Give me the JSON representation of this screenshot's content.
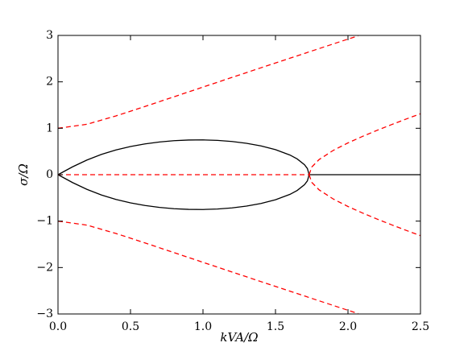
{
  "chart_data": {
    "type": "line",
    "xlabel": "kVA/Ω",
    "ylabel": "σ/Ω",
    "xlim": [
      0,
      2.5
    ],
    "ylim": [
      -3,
      3
    ],
    "xticks": [
      {
        "value": 0,
        "label": "0.0"
      },
      {
        "value": 0.5,
        "label": "0.5"
      },
      {
        "value": 1,
        "label": "1.0"
      },
      {
        "value": 1.5,
        "label": "1.5"
      },
      {
        "value": 2,
        "label": "2.0"
      },
      {
        "value": 2.5,
        "label": "2.5"
      }
    ],
    "yticks": [
      {
        "value": -3,
        "label": "−3"
      },
      {
        "value": -2,
        "label": "−2"
      },
      {
        "value": -1,
        "label": "−1"
      },
      0,
      1,
      2,
      3
    ],
    "grid": false,
    "series": [
      {
        "color": "#000000",
        "linestyle": "solid",
        "x": [
          0,
          0.1,
          0.2,
          0.3,
          0.4,
          0.5,
          0.6,
          0.7,
          0.8,
          0.9,
          1.0,
          1.1,
          1.2,
          1.3,
          1.4,
          1.5,
          1.6,
          1.65,
          1.7,
          1.72,
          1.732
        ],
        "values": [
          0,
          0.1689,
          0.3167,
          0.4371,
          0.5324,
          0.6067,
          0.6633,
          0.7047,
          0.7323,
          0.7471,
          0.7494,
          0.739,
          0.7152,
          0.6765,
          0.6199,
          0.5398,
          0.4229,
          0.3394,
          0.2158,
          0.1332,
          0
        ]
      },
      {
        "color": "#000000",
        "linestyle": "solid",
        "x": [
          0,
          0.1,
          0.2,
          0.3,
          0.4,
          0.5,
          0.6,
          0.7,
          0.8,
          0.9,
          1.0,
          1.1,
          1.2,
          1.3,
          1.4,
          1.5,
          1.6,
          1.65,
          1.7,
          1.72,
          1.732
        ],
        "values": [
          0,
          -0.1689,
          -0.3167,
          -0.4371,
          -0.5324,
          -0.6067,
          -0.6633,
          -0.7047,
          -0.7323,
          -0.7471,
          -0.7494,
          -0.739,
          -0.7152,
          -0.6765,
          -0.6199,
          -0.5398,
          -0.4229,
          -0.3394,
          -0.2158,
          -0.1332,
          0
        ]
      },
      {
        "color": "#000000",
        "linestyle": "solid",
        "x": [
          1.732,
          2.5
        ],
        "values": [
          0,
          0
        ]
      },
      {
        "color": "#ff0000",
        "linestyle": "dashed",
        "x": [
          0,
          1.732
        ],
        "values": [
          0,
          0
        ]
      },
      {
        "color": "#ff0000",
        "linestyle": "dashed",
        "x": [
          0,
          0.2,
          0.4,
          0.6,
          0.8,
          1.0,
          1.2,
          1.4,
          1.6,
          1.8,
          2.0,
          2.07
        ],
        "values": [
          1,
          1.0864,
          1.2663,
          1.4697,
          1.6782,
          1.8872,
          2.0956,
          2.3031,
          2.5098,
          2.7156,
          2.9208,
          2.992
        ]
      },
      {
        "color": "#ff0000",
        "linestyle": "dashed",
        "x": [
          0,
          0.2,
          0.4,
          0.6,
          0.8,
          1.0,
          1.2,
          1.4,
          1.6,
          1.8,
          2.0,
          2.07
        ],
        "values": [
          -1,
          -1.0864,
          -1.2663,
          -1.4697,
          -1.6782,
          -1.8872,
          -2.0956,
          -2.3031,
          -2.5098,
          -2.7156,
          -2.9208,
          -2.992
        ]
      },
      {
        "color": "#ff0000",
        "linestyle": "dashed",
        "x": [
          1.732,
          1.75,
          1.8,
          1.9,
          2.0,
          2.1,
          2.2,
          2.3,
          2.4,
          2.5
        ],
        "values": [
          0,
          0.1642,
          0.3247,
          0.5265,
          0.6847,
          0.8248,
          0.9548,
          1.0784,
          1.1975,
          1.3134
        ]
      },
      {
        "color": "#ff0000",
        "linestyle": "dashed",
        "x": [
          1.732,
          1.75,
          1.8,
          1.9,
          2.0,
          2.1,
          2.2,
          2.3,
          2.4,
          2.5
        ],
        "values": [
          0,
          -0.1642,
          -0.3247,
          -0.5265,
          -0.6847,
          -0.8248,
          -0.9548,
          -1.0784,
          -1.1975,
          -1.3134
        ]
      }
    ]
  }
}
